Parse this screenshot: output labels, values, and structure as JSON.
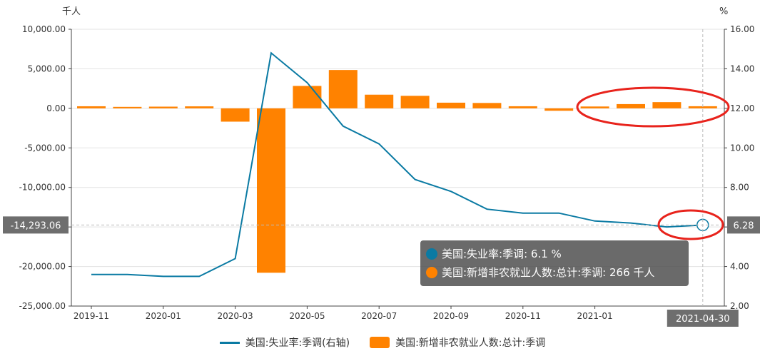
{
  "chart_data": {
    "type": "bar+line",
    "left_axis": {
      "unit": "千人",
      "ylim": [
        -25000,
        10000
      ],
      "ticks": [
        "10,000.00",
        "5,000.00",
        "0.00",
        "-5,000.00",
        "-10,000.00",
        "-15,000.00",
        "-20,000.00",
        "-25,000.00"
      ]
    },
    "right_axis": {
      "unit": "%",
      "ylim": [
        2,
        16
      ],
      "ticks": [
        "16.00",
        "14.00",
        "12.00",
        "10.00",
        "8.00",
        "6.00",
        "4.00",
        "2.00"
      ]
    },
    "x_tick_labels": [
      "2019-11",
      "2020-01",
      "2020-03",
      "2020-05",
      "2020-07",
      "2020-09",
      "2020-11",
      "2021-01"
    ],
    "categories": [
      "2019-11",
      "2019-12",
      "2020-01",
      "2020-02",
      "2020-03",
      "2020-04",
      "2020-05",
      "2020-06",
      "2020-07",
      "2020-08",
      "2020-09",
      "2020-10",
      "2020-11",
      "2020-12",
      "2021-01",
      "2021-02",
      "2021-03",
      "2021-04"
    ],
    "series": [
      {
        "name": "美国:新增非农就业人数:总计:季调",
        "type": "bar",
        "axis": "left",
        "color": "#ff8200",
        "values": [
          261,
          184,
          214,
          251,
          -1683,
          -20787,
          2833,
          4846,
          1726,
          1583,
          716,
          680,
          264,
          -306,
          233,
          536,
          785,
          266
        ]
      },
      {
        "name": "美国:失业率:季调(右轴)",
        "type": "line",
        "axis": "right",
        "color": "#0a7aa3",
        "values": [
          3.6,
          3.6,
          3.5,
          3.5,
          4.4,
          14.8,
          13.3,
          11.1,
          10.2,
          8.4,
          7.8,
          6.9,
          6.7,
          6.7,
          6.3,
          6.2,
          6.0,
          6.1
        ]
      }
    ],
    "grid": true,
    "legend_position": "bottom-center",
    "crosshair": {
      "category": "2021-04-30",
      "left_value_label": "-14,293.06",
      "right_value_label": "6.28"
    },
    "tooltip": {
      "rows": [
        {
          "text": "美国:失业率:季调: 6.1 %",
          "color": "#0a7aa3"
        },
        {
          "text": "美国:新增非农就业人数:总计:季调: 266 千人",
          "color": "#ff8200"
        }
      ]
    },
    "annotation_color": "#e8231c"
  }
}
